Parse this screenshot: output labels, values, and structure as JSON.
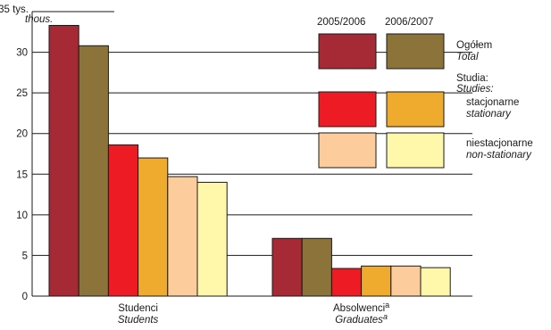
{
  "chart_data": {
    "type": "bar",
    "y_unit_label": "tys.",
    "y_unit_label_en": "thous.",
    "ylim": [
      0,
      35
    ],
    "y_ticks": [
      0,
      5,
      10,
      15,
      20,
      25,
      30,
      35
    ],
    "grid": true,
    "categories": [
      {
        "label": "Studenci",
        "label_en": "Students",
        "sup": ""
      },
      {
        "label": "Absolwenci",
        "label_en": "Graduates",
        "sup": "a"
      }
    ],
    "series": [
      {
        "key": "total_0506",
        "color": "#a52a35",
        "values": [
          33.3,
          7.1
        ]
      },
      {
        "key": "total_0607",
        "color": "#8b7339",
        "values": [
          30.8,
          7.1
        ]
      },
      {
        "key": "stat_0506",
        "color": "#ed1c24",
        "values": [
          18.6,
          3.4
        ]
      },
      {
        "key": "stat_0607",
        "color": "#eeab2e",
        "values": [
          17.0,
          3.7
        ]
      },
      {
        "key": "nonstat_0506",
        "color": "#fdcc9c",
        "values": [
          14.7,
          3.7
        ]
      },
      {
        "key": "nonstat_0607",
        "color": "#fff8ab",
        "values": [
          14.0,
          3.5
        ]
      }
    ],
    "legend": {
      "placement": "top-right",
      "year_headers": [
        "2005/2006",
        "2006/2007"
      ],
      "rows": [
        {
          "label": "Ogółem",
          "label_en": "Total",
          "swatches": [
            "#a52a35",
            "#8b7339"
          ]
        },
        {
          "group_label": "Studia:",
          "group_label_en": "Studies:"
        },
        {
          "label": "stacjonarne",
          "label_en": "stationary",
          "swatches": [
            "#ed1c24",
            "#eeab2e"
          ]
        },
        {
          "label": "niestacjonarne",
          "label_en": "non-stationary",
          "swatches": [
            "#fdcc9c",
            "#fff8ab"
          ]
        }
      ]
    }
  }
}
